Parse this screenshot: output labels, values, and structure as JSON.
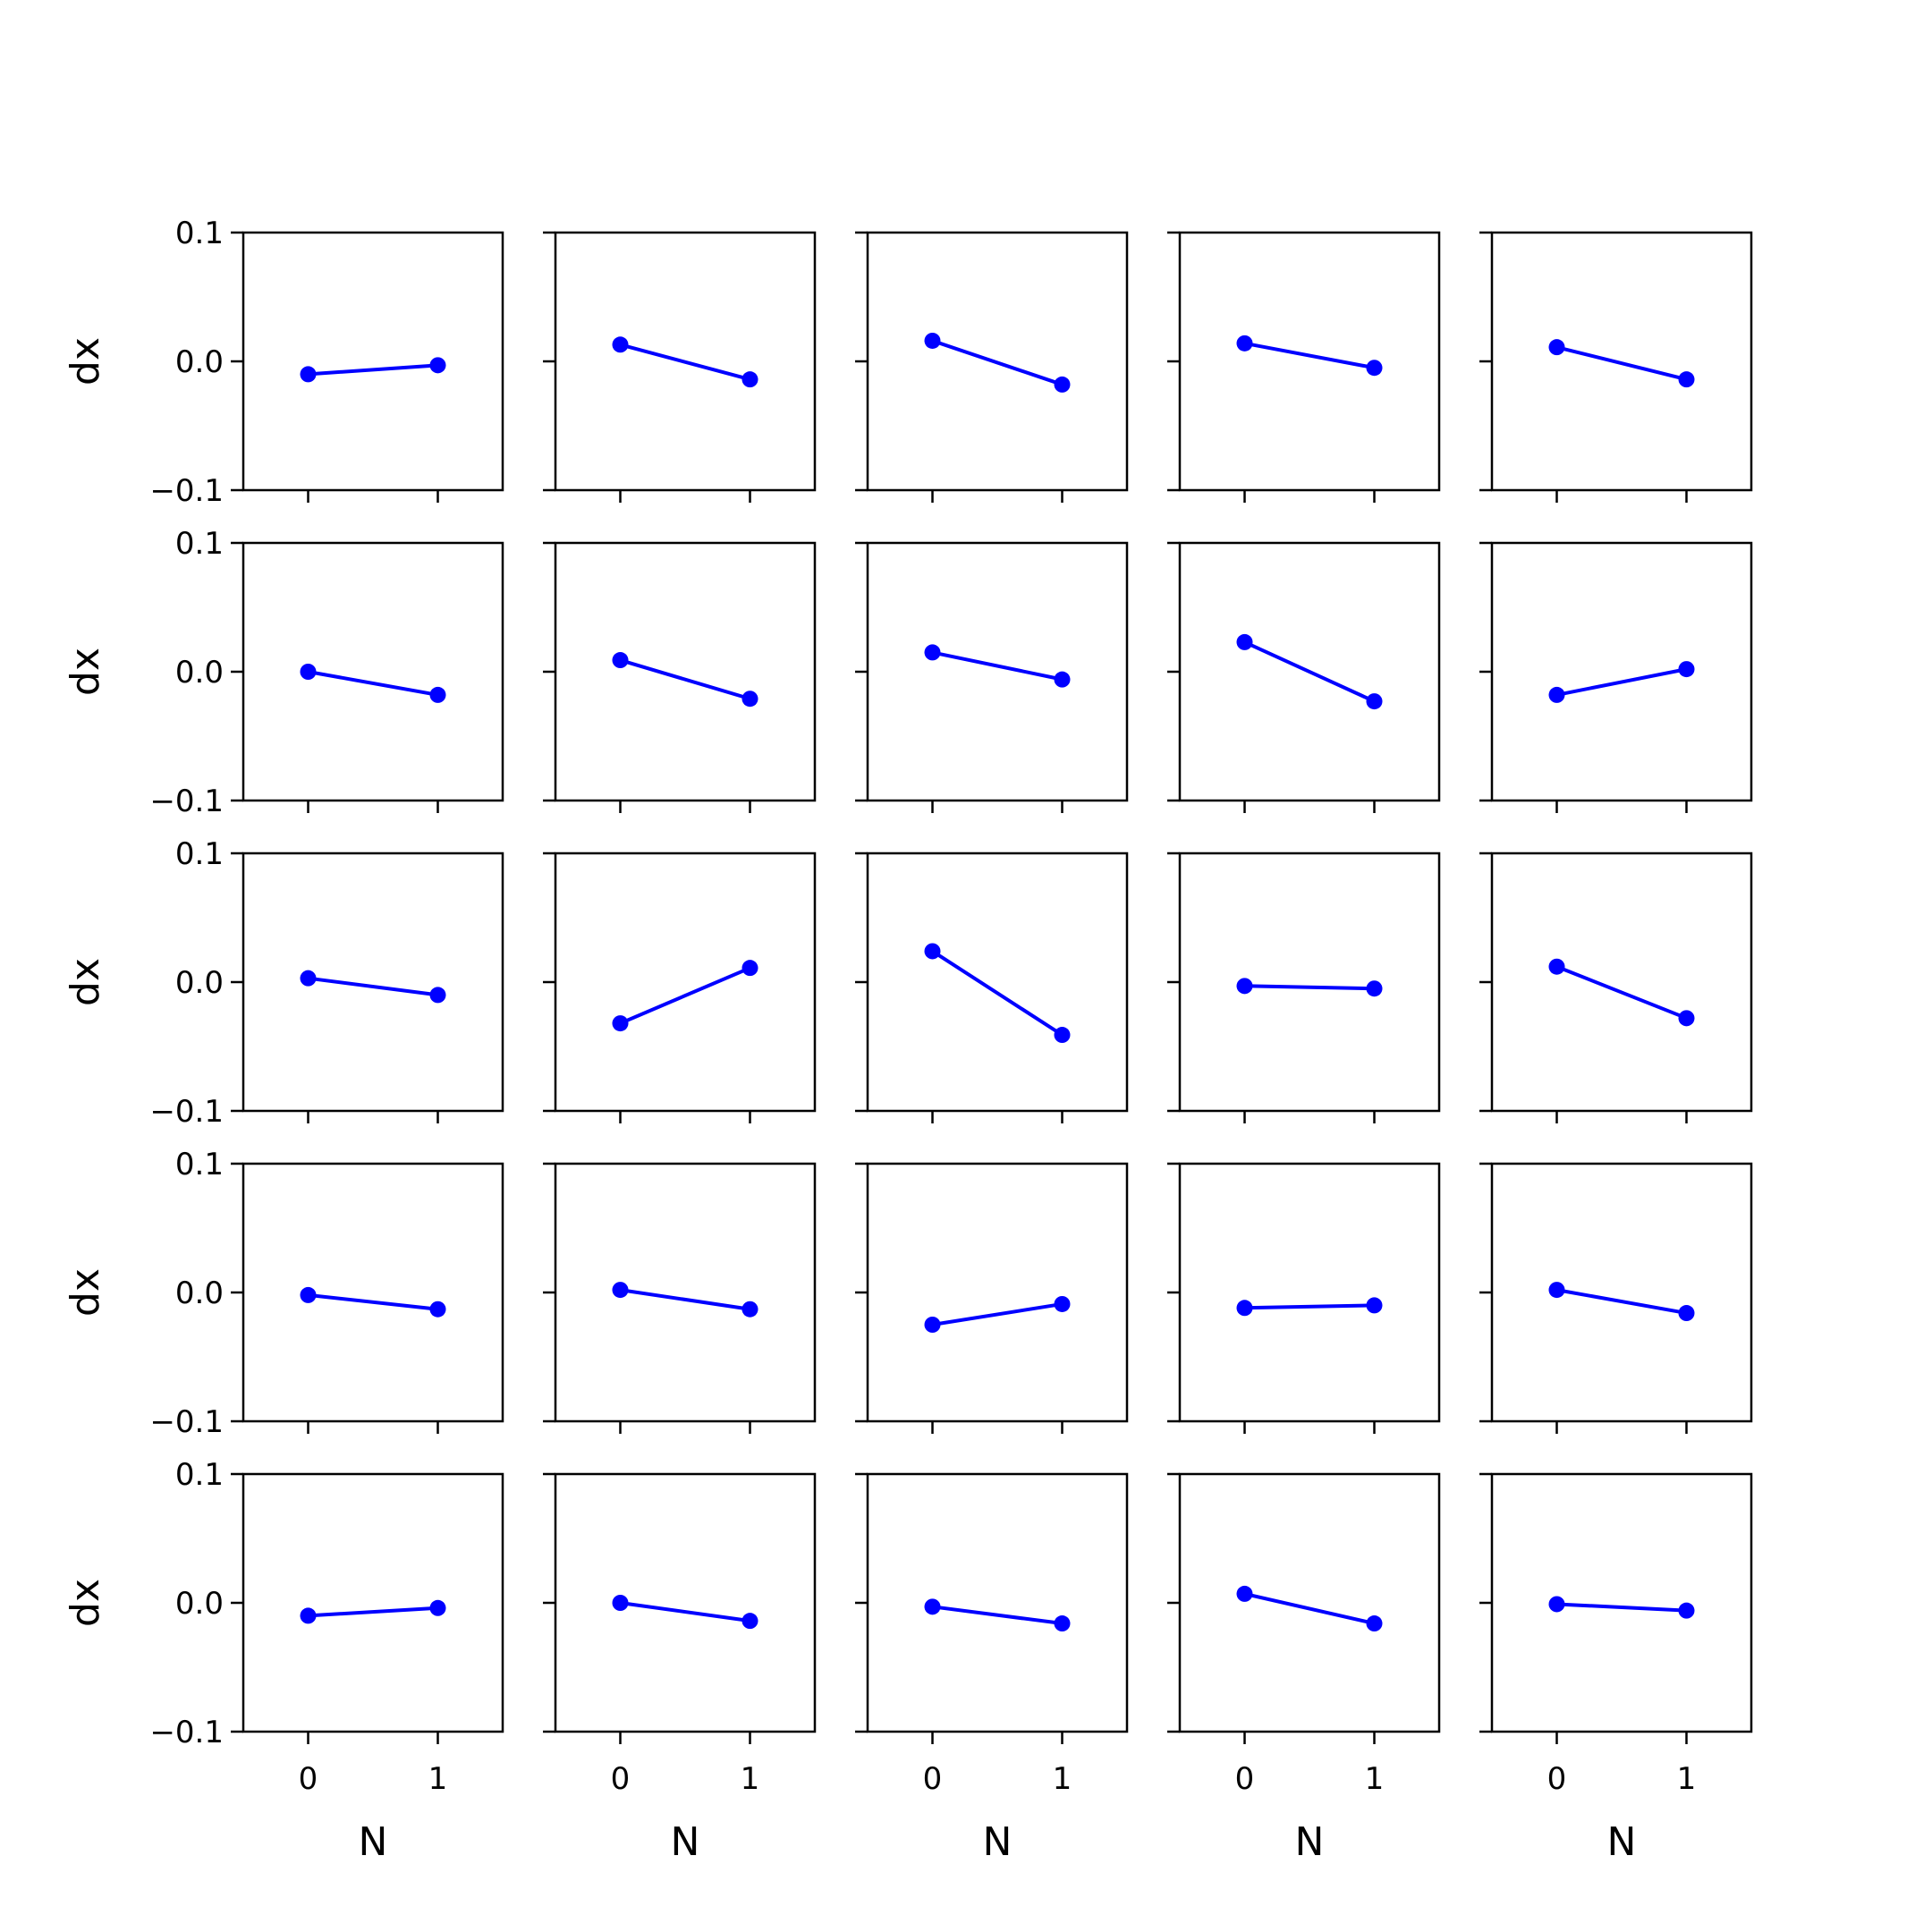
{
  "chart_data": {
    "type": "line",
    "layout": "5x5 grid of small multiples",
    "xlabel": "N",
    "ylabel": "dx",
    "xticks": [
      "0",
      "1"
    ],
    "yticks": [
      "0.1",
      "0.0",
      "−0.1"
    ],
    "xlim": [
      -0.5,
      1.5
    ],
    "ylim": [
      -0.1,
      0.1
    ],
    "series_color": "#0000ff",
    "marker": "circle",
    "panels": [
      {
        "row": 0,
        "col": 0,
        "x": [
          0,
          1
        ],
        "y": [
          -0.01,
          -0.003
        ]
      },
      {
        "row": 0,
        "col": 1,
        "x": [
          0,
          1
        ],
        "y": [
          0.013,
          -0.014
        ]
      },
      {
        "row": 0,
        "col": 2,
        "x": [
          0,
          1
        ],
        "y": [
          0.016,
          -0.018
        ]
      },
      {
        "row": 0,
        "col": 3,
        "x": [
          0,
          1
        ],
        "y": [
          0.014,
          -0.005
        ]
      },
      {
        "row": 0,
        "col": 4,
        "x": [
          0,
          1
        ],
        "y": [
          0.011,
          -0.014
        ]
      },
      {
        "row": 1,
        "col": 0,
        "x": [
          0,
          1
        ],
        "y": [
          0.0,
          -0.018
        ]
      },
      {
        "row": 1,
        "col": 1,
        "x": [
          0,
          1
        ],
        "y": [
          0.009,
          -0.021
        ]
      },
      {
        "row": 1,
        "col": 2,
        "x": [
          0,
          1
        ],
        "y": [
          0.015,
          -0.006
        ]
      },
      {
        "row": 1,
        "col": 3,
        "x": [
          0,
          1
        ],
        "y": [
          0.023,
          -0.023
        ]
      },
      {
        "row": 1,
        "col": 4,
        "x": [
          0,
          1
        ],
        "y": [
          -0.018,
          0.002
        ]
      },
      {
        "row": 2,
        "col": 0,
        "x": [
          0,
          1
        ],
        "y": [
          0.003,
          -0.01
        ]
      },
      {
        "row": 2,
        "col": 1,
        "x": [
          0,
          1
        ],
        "y": [
          -0.032,
          0.011
        ]
      },
      {
        "row": 2,
        "col": 2,
        "x": [
          0,
          1
        ],
        "y": [
          0.024,
          -0.041
        ]
      },
      {
        "row": 2,
        "col": 3,
        "x": [
          0,
          1
        ],
        "y": [
          -0.003,
          -0.005
        ]
      },
      {
        "row": 2,
        "col": 4,
        "x": [
          0,
          1
        ],
        "y": [
          0.012,
          -0.028
        ]
      },
      {
        "row": 3,
        "col": 0,
        "x": [
          0,
          1
        ],
        "y": [
          -0.002,
          -0.013
        ]
      },
      {
        "row": 3,
        "col": 1,
        "x": [
          0,
          1
        ],
        "y": [
          0.002,
          -0.013
        ]
      },
      {
        "row": 3,
        "col": 2,
        "x": [
          0,
          1
        ],
        "y": [
          -0.025,
          -0.009
        ]
      },
      {
        "row": 3,
        "col": 3,
        "x": [
          0,
          1
        ],
        "y": [
          -0.012,
          -0.01
        ]
      },
      {
        "row": 3,
        "col": 4,
        "x": [
          0,
          1
        ],
        "y": [
          0.002,
          -0.016
        ]
      },
      {
        "row": 4,
        "col": 0,
        "x": [
          0,
          1
        ],
        "y": [
          -0.01,
          -0.004
        ]
      },
      {
        "row": 4,
        "col": 1,
        "x": [
          0,
          1
        ],
        "y": [
          0.0,
          -0.014
        ]
      },
      {
        "row": 4,
        "col": 2,
        "x": [
          0,
          1
        ],
        "y": [
          -0.003,
          -0.016
        ]
      },
      {
        "row": 4,
        "col": 3,
        "x": [
          0,
          1
        ],
        "y": [
          0.007,
          -0.016
        ]
      },
      {
        "row": 4,
        "col": 4,
        "x": [
          0,
          1
        ],
        "y": [
          -0.001,
          -0.006
        ]
      }
    ]
  }
}
